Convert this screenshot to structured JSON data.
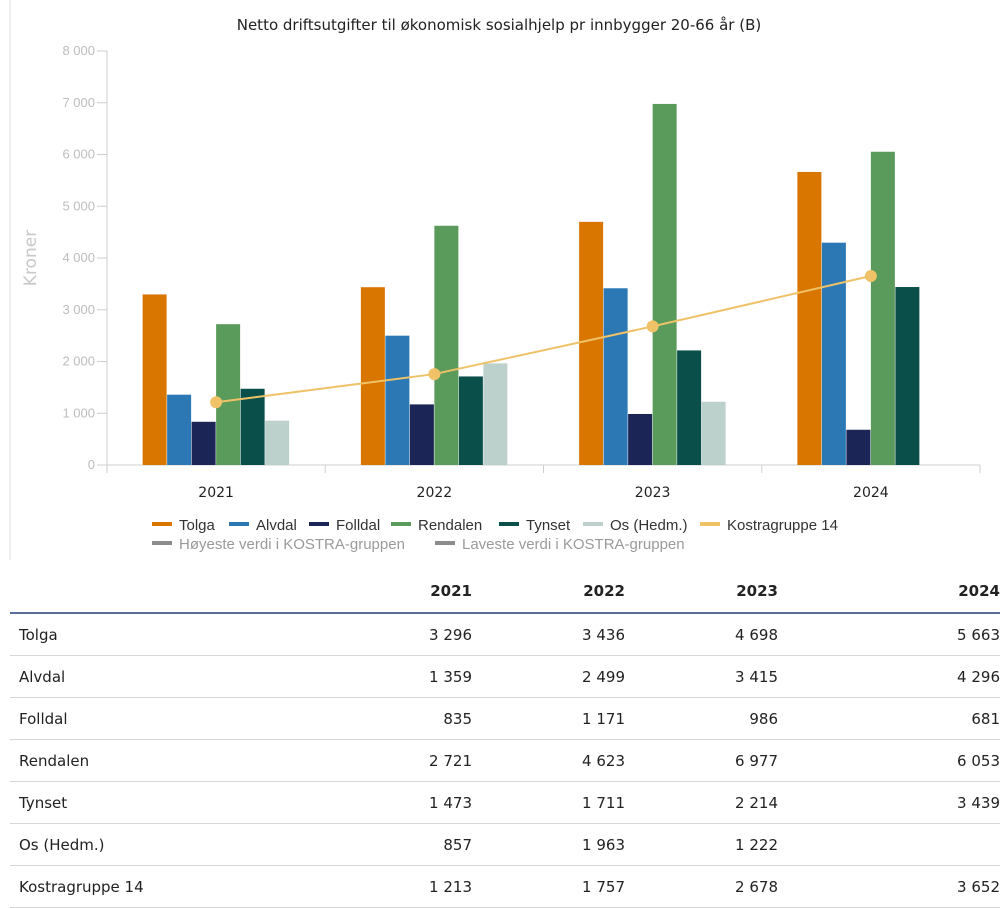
{
  "chart_data": {
    "type": "bar",
    "title": "Netto driftsutgifter til økonomisk sosialhjelp pr innbygger 20-66 år (B)",
    "ylabel": "Kroner",
    "xlabel": "",
    "ylim": [
      0,
      8000
    ],
    "yticks": [
      "0",
      "1 000",
      "2 000",
      "3 000",
      "4 000",
      "5 000",
      "6 000",
      "7 000",
      "8 000"
    ],
    "categories": [
      "2021",
      "2022",
      "2023",
      "2024"
    ],
    "series": [
      {
        "name": "Tolga",
        "color": "#d97600",
        "values": [
          3296,
          3436,
          4698,
          5663
        ]
      },
      {
        "name": "Alvdal",
        "color": "#2b78b4",
        "values": [
          1359,
          2499,
          3415,
          4296
        ]
      },
      {
        "name": "Folldal",
        "color": "#1b2656",
        "values": [
          835,
          1171,
          986,
          681
        ]
      },
      {
        "name": "Rendalen",
        "color": "#5a9a5a",
        "values": [
          2721,
          4623,
          6977,
          6053
        ]
      },
      {
        "name": "Tynset",
        "color": "#0a4f4a",
        "values": [
          1473,
          1711,
          2214,
          3439
        ]
      },
      {
        "name": "Os (Hedm.)",
        "color": "#bcd0cc",
        "values": [
          857,
          1963,
          1222,
          null
        ]
      }
    ],
    "line_series": {
      "name": "Kostragruppe 14",
      "color": "#f0c268",
      "values": [
        1213,
        1757,
        2678,
        3652
      ]
    },
    "extra_legend": [
      {
        "name": "Høyeste verdi i KOSTRA-gruppen",
        "color": "#8c8c8c"
      },
      {
        "name": "Laveste verdi i KOSTRA-gruppen",
        "color": "#8c8c8c"
      }
    ],
    "grid": false,
    "legend_position": "bottom"
  },
  "table": {
    "headers": [
      "",
      "2021",
      "2022",
      "2023",
      "2024"
    ],
    "rows": [
      {
        "label": "Tolga",
        "cells": [
          "3 296",
          "3 436",
          "4 698",
          "5 663"
        ]
      },
      {
        "label": "Alvdal",
        "cells": [
          "1 359",
          "2 499",
          "3 415",
          "4 296"
        ]
      },
      {
        "label": "Folldal",
        "cells": [
          "835",
          "1 171",
          "986",
          "681"
        ]
      },
      {
        "label": "Rendalen",
        "cells": [
          "2 721",
          "4 623",
          "6 977",
          "6 053"
        ]
      },
      {
        "label": "Tynset",
        "cells": [
          "1 473",
          "1 711",
          "2 214",
          "3 439"
        ]
      },
      {
        "label": "Os (Hedm.)",
        "cells": [
          "857",
          "1 963",
          "1 222",
          ""
        ]
      },
      {
        "label": "Kostragruppe 14",
        "cells": [
          "1 213",
          "1 757",
          "2 678",
          "3 652"
        ]
      }
    ]
  }
}
